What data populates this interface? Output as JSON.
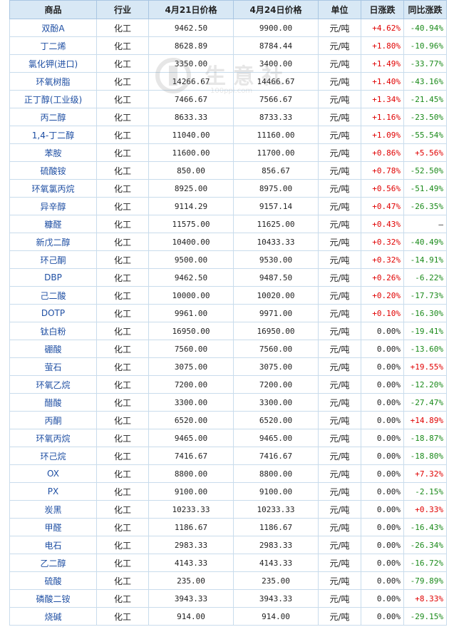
{
  "table": {
    "headers": [
      "商品",
      "行业",
      "4月21日价格",
      "4月24日价格",
      "单位",
      "日涨跌",
      "同比涨跌"
    ],
    "rows": [
      {
        "name": "双酚A",
        "industry": "化工",
        "price_apr21": "9462.50",
        "price_apr24": "9900.00",
        "unit": "元/吨",
        "daily_change": "+4.62%",
        "yoy_change": "-40.94%"
      },
      {
        "name": "丁二烯",
        "industry": "化工",
        "price_apr21": "8628.89",
        "price_apr24": "8784.44",
        "unit": "元/吨",
        "daily_change": "+1.80%",
        "yoy_change": "-10.96%"
      },
      {
        "name": "氯化钾(进口)",
        "industry": "化工",
        "price_apr21": "3350.00",
        "price_apr24": "3400.00",
        "unit": "元/吨",
        "daily_change": "+1.49%",
        "yoy_change": "-33.77%"
      },
      {
        "name": "环氧树脂",
        "industry": "化工",
        "price_apr21": "14266.67",
        "price_apr24": "14466.67",
        "unit": "元/吨",
        "daily_change": "+1.40%",
        "yoy_change": "-43.16%"
      },
      {
        "name": "正丁醇(工业级)",
        "industry": "化工",
        "price_apr21": "7466.67",
        "price_apr24": "7566.67",
        "unit": "元/吨",
        "daily_change": "+1.34%",
        "yoy_change": "-21.45%"
      },
      {
        "name": "丙二醇",
        "industry": "化工",
        "price_apr21": "8633.33",
        "price_apr24": "8733.33",
        "unit": "元/吨",
        "daily_change": "+1.16%",
        "yoy_change": "-23.50%"
      },
      {
        "name": "1,4-丁二醇",
        "industry": "化工",
        "price_apr21": "11040.00",
        "price_apr24": "11160.00",
        "unit": "元/吨",
        "daily_change": "+1.09%",
        "yoy_change": "-55.54%"
      },
      {
        "name": "苯胺",
        "industry": "化工",
        "price_apr21": "11600.00",
        "price_apr24": "11700.00",
        "unit": "元/吨",
        "daily_change": "+0.86%",
        "yoy_change": "+5.56%"
      },
      {
        "name": "硫酸铵",
        "industry": "化工",
        "price_apr21": "850.00",
        "price_apr24": "856.67",
        "unit": "元/吨",
        "daily_change": "+0.78%",
        "yoy_change": "-52.50%"
      },
      {
        "name": "环氧氯丙烷",
        "industry": "化工",
        "price_apr21": "8925.00",
        "price_apr24": "8975.00",
        "unit": "元/吨",
        "daily_change": "+0.56%",
        "yoy_change": "-51.49%"
      },
      {
        "name": "异辛醇",
        "industry": "化工",
        "price_apr21": "9114.29",
        "price_apr24": "9157.14",
        "unit": "元/吨",
        "daily_change": "+0.47%",
        "yoy_change": "-26.35%"
      },
      {
        "name": "糠醛",
        "industry": "化工",
        "price_apr21": "11575.00",
        "price_apr24": "11625.00",
        "unit": "元/吨",
        "daily_change": "+0.43%",
        "yoy_change": "—"
      },
      {
        "name": "新戊二醇",
        "industry": "化工",
        "price_apr21": "10400.00",
        "price_apr24": "10433.33",
        "unit": "元/吨",
        "daily_change": "+0.32%",
        "yoy_change": "-40.49%"
      },
      {
        "name": "环己酮",
        "industry": "化工",
        "price_apr21": "9500.00",
        "price_apr24": "9530.00",
        "unit": "元/吨",
        "daily_change": "+0.32%",
        "yoy_change": "-14.91%"
      },
      {
        "name": "DBP",
        "industry": "化工",
        "price_apr21": "9462.50",
        "price_apr24": "9487.50",
        "unit": "元/吨",
        "daily_change": "+0.26%",
        "yoy_change": "-6.22%"
      },
      {
        "name": "己二酸",
        "industry": "化工",
        "price_apr21": "10000.00",
        "price_apr24": "10020.00",
        "unit": "元/吨",
        "daily_change": "+0.20%",
        "yoy_change": "-17.73%"
      },
      {
        "name": "DOTP",
        "industry": "化工",
        "price_apr21": "9961.00",
        "price_apr24": "9971.00",
        "unit": "元/吨",
        "daily_change": "+0.10%",
        "yoy_change": "-16.30%"
      },
      {
        "name": "钛白粉",
        "industry": "化工",
        "price_apr21": "16950.00",
        "price_apr24": "16950.00",
        "unit": "元/吨",
        "daily_change": "0.00%",
        "yoy_change": "-19.41%"
      },
      {
        "name": "硼酸",
        "industry": "化工",
        "price_apr21": "7560.00",
        "price_apr24": "7560.00",
        "unit": "元/吨",
        "daily_change": "0.00%",
        "yoy_change": "-13.60%"
      },
      {
        "name": "萤石",
        "industry": "化工",
        "price_apr21": "3075.00",
        "price_apr24": "3075.00",
        "unit": "元/吨",
        "daily_change": "0.00%",
        "yoy_change": "+19.55%"
      },
      {
        "name": "环氧乙烷",
        "industry": "化工",
        "price_apr21": "7200.00",
        "price_apr24": "7200.00",
        "unit": "元/吨",
        "daily_change": "0.00%",
        "yoy_change": "-12.20%"
      },
      {
        "name": "醋酸",
        "industry": "化工",
        "price_apr21": "3300.00",
        "price_apr24": "3300.00",
        "unit": "元/吨",
        "daily_change": "0.00%",
        "yoy_change": "-27.47%"
      },
      {
        "name": "丙酮",
        "industry": "化工",
        "price_apr21": "6520.00",
        "price_apr24": "6520.00",
        "unit": "元/吨",
        "daily_change": "0.00%",
        "yoy_change": "+14.89%"
      },
      {
        "name": "环氧丙烷",
        "industry": "化工",
        "price_apr21": "9465.00",
        "price_apr24": "9465.00",
        "unit": "元/吨",
        "daily_change": "0.00%",
        "yoy_change": "-18.87%"
      },
      {
        "name": "环己烷",
        "industry": "化工",
        "price_apr21": "7416.67",
        "price_apr24": "7416.67",
        "unit": "元/吨",
        "daily_change": "0.00%",
        "yoy_change": "-18.80%"
      },
      {
        "name": "OX",
        "industry": "化工",
        "price_apr21": "8800.00",
        "price_apr24": "8800.00",
        "unit": "元/吨",
        "daily_change": "0.00%",
        "yoy_change": "+7.32%"
      },
      {
        "name": "PX",
        "industry": "化工",
        "price_apr21": "9100.00",
        "price_apr24": "9100.00",
        "unit": "元/吨",
        "daily_change": "0.00%",
        "yoy_change": "-2.15%"
      },
      {
        "name": "炭黑",
        "industry": "化工",
        "price_apr21": "10233.33",
        "price_apr24": "10233.33",
        "unit": "元/吨",
        "daily_change": "0.00%",
        "yoy_change": "+0.33%"
      },
      {
        "name": "甲醛",
        "industry": "化工",
        "price_apr21": "1186.67",
        "price_apr24": "1186.67",
        "unit": "元/吨",
        "daily_change": "0.00%",
        "yoy_change": "-16.43%"
      },
      {
        "name": "电石",
        "industry": "化工",
        "price_apr21": "2983.33",
        "price_apr24": "2983.33",
        "unit": "元/吨",
        "daily_change": "0.00%",
        "yoy_change": "-26.34%"
      },
      {
        "name": "乙二醇",
        "industry": "化工",
        "price_apr21": "4143.33",
        "price_apr24": "4143.33",
        "unit": "元/吨",
        "daily_change": "0.00%",
        "yoy_change": "-16.72%"
      },
      {
        "name": "硫酸",
        "industry": "化工",
        "price_apr21": "235.00",
        "price_apr24": "235.00",
        "unit": "元/吨",
        "daily_change": "0.00%",
        "yoy_change": "-79.89%"
      },
      {
        "name": "磷酸二铵",
        "industry": "化工",
        "price_apr21": "3943.33",
        "price_apr24": "3943.33",
        "unit": "元/吨",
        "daily_change": "0.00%",
        "yoy_change": "+8.33%"
      },
      {
        "name": "烧碱",
        "industry": "化工",
        "price_apr21": "914.00",
        "price_apr24": "914.00",
        "unit": "元/吨",
        "daily_change": "0.00%",
        "yoy_change": "-29.15%"
      }
    ]
  },
  "watermark": {
    "text": "生意社",
    "sub": "100ppi.com",
    "logo": "100ppi-logo"
  },
  "colors": {
    "up": "#e00000",
    "down": "#1a8a1a",
    "header_bg": "#d8e8f5",
    "border": "#c9dcec",
    "name_link": "#1f4fa3"
  }
}
